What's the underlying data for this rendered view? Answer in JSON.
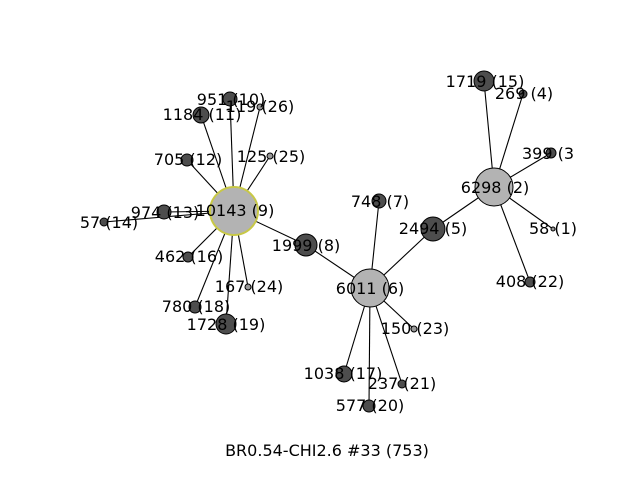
{
  "caption": "BR0.54-CHI2.6 #33 (753)",
  "colors": {
    "hub_fill": "#b3b3b3",
    "node_fill": "#4d4d4d",
    "tiny_fill": "#999999",
    "edge": "#000000",
    "highlight_stroke": "#c8c846"
  },
  "nodes": [
    {
      "id": 9,
      "label": "10143 (9)",
      "highlighted": true
    },
    {
      "id": 6,
      "label": "6011 (6)"
    },
    {
      "id": 2,
      "label": "6298 (2)"
    },
    {
      "id": 8,
      "label": "1999 (8)"
    },
    {
      "id": 5,
      "label": "2494 (5)"
    },
    {
      "id": 7,
      "label": "748 (7)"
    },
    {
      "id": 15,
      "label": "1719 (15)"
    },
    {
      "id": 4,
      "label": "269 (4)"
    },
    {
      "id": 3,
      "label": "399 (3"
    },
    {
      "id": 1,
      "label": "58 (1)"
    },
    {
      "id": 22,
      "label": "408 (22)"
    },
    {
      "id": 10,
      "label": "951 (10)"
    },
    {
      "id": 11,
      "label": "1184 (11)"
    },
    {
      "id": 26,
      "label": "119 (26)"
    },
    {
      "id": 25,
      "label": "125 (25)"
    },
    {
      "id": 12,
      "label": "705 (12)"
    },
    {
      "id": 13,
      "label": "974 (13)"
    },
    {
      "id": 14,
      "label": "57 (14)"
    },
    {
      "id": 16,
      "label": "462 (16)"
    },
    {
      "id": 24,
      "label": "167 (24)"
    },
    {
      "id": 18,
      "label": "780 (18)"
    },
    {
      "id": 19,
      "label": "1728 (19)"
    },
    {
      "id": 17,
      "label": "1038 (17)"
    },
    {
      "id": 20,
      "label": "577 (20)"
    },
    {
      "id": 21,
      "label": "237 (21)"
    },
    {
      "id": 23,
      "label": "150 (23)"
    }
  ],
  "edges": [
    [
      9,
      10
    ],
    [
      9,
      11
    ],
    [
      9,
      26
    ],
    [
      9,
      25
    ],
    [
      9,
      12
    ],
    [
      9,
      13
    ],
    [
      9,
      14
    ],
    [
      9,
      16
    ],
    [
      9,
      24
    ],
    [
      9,
      18
    ],
    [
      9,
      19
    ],
    [
      9,
      8
    ],
    [
      8,
      6
    ],
    [
      6,
      7
    ],
    [
      6,
      5
    ],
    [
      6,
      23
    ],
    [
      6,
      21
    ],
    [
      6,
      20
    ],
    [
      6,
      17
    ],
    [
      5,
      2
    ],
    [
      2,
      15
    ],
    [
      2,
      4
    ],
    [
      2,
      3
    ],
    [
      2,
      1
    ],
    [
      2,
      22
    ]
  ]
}
